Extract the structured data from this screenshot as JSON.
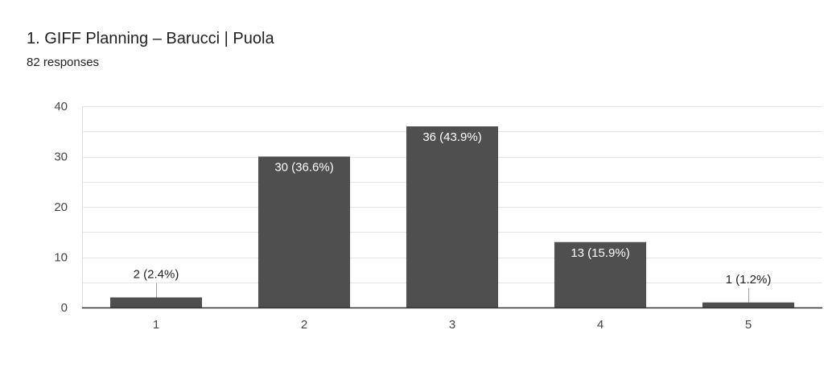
{
  "question": {
    "title": "1. GIFF Planning – Barucci | Puola",
    "responses": "82 responses"
  },
  "colors": {
    "bar": "#4f4f4f",
    "grid": "#e6e6e6",
    "axis": "#333333",
    "label_inside": "#ffffff",
    "label_outside": "#202124",
    "tick": "#444444"
  },
  "chart_data": {
    "type": "bar",
    "title": "",
    "xlabel": "",
    "ylabel": "",
    "categories": [
      "1",
      "2",
      "3",
      "4",
      "5"
    ],
    "values": [
      2,
      30,
      36,
      13,
      1
    ],
    "data_labels": [
      "2 (2.4%)",
      "30 (36.6%)",
      "36 (43.9%)",
      "13 (15.9%)",
      "1 (1.2%)"
    ],
    "ylim": [
      0,
      40
    ],
    "yticks": [
      0,
      10,
      20,
      30,
      40
    ],
    "grid": true,
    "legend": "none"
  }
}
